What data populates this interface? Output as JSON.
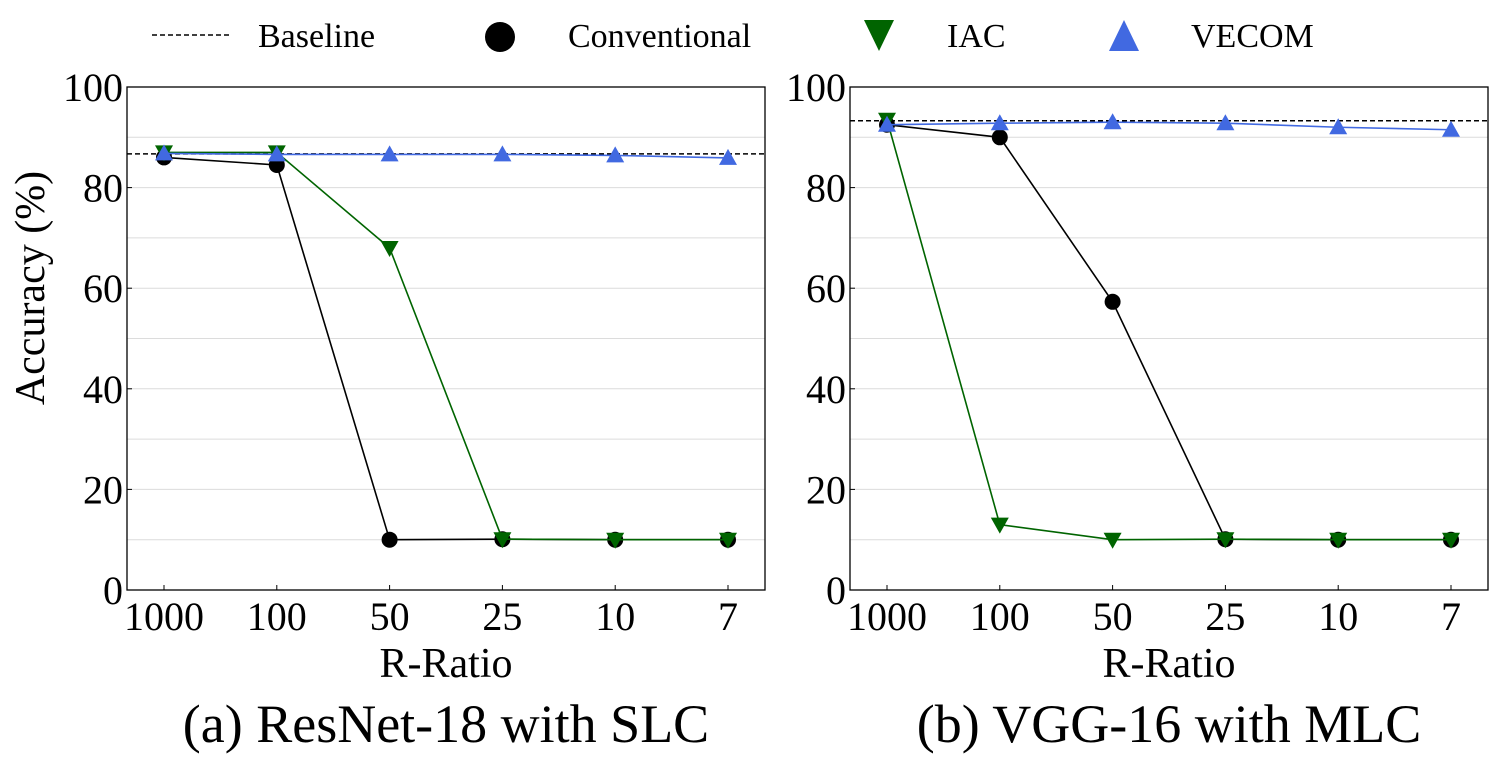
{
  "legend": {
    "items": [
      {
        "label": "Baseline",
        "marker": "dashed-line",
        "color": "#000000"
      },
      {
        "label": "Conventional",
        "marker": "circle",
        "color": "#000000"
      },
      {
        "label": "IAC",
        "marker": "triangle-down",
        "color": "#006400"
      },
      {
        "label": "VECOM",
        "marker": "triangle-up",
        "color": "#4169e1"
      }
    ]
  },
  "y_axis_title": "Accuracy (%)",
  "chart_data": [
    {
      "type": "line",
      "title": "(a) ResNet-18 with SLC",
      "xlabel": "R-Ratio",
      "ylabel": "Accuracy (%)",
      "categories": [
        "1000",
        "100",
        "50",
        "25",
        "10",
        "7"
      ],
      "yticks": [
        "0",
        "20",
        "40",
        "60",
        "80",
        "100"
      ],
      "ylim": [
        0,
        100
      ],
      "grid": "horizontal",
      "baseline": 86.7,
      "series": [
        {
          "name": "Conventional",
          "values": [
            86.0,
            84.5,
            10.0,
            10.1,
            10.0,
            10.0
          ]
        },
        {
          "name": "IAC",
          "values": [
            87.0,
            87.0,
            68.0,
            10.1,
            10.0,
            10.0
          ]
        },
        {
          "name": "VECOM",
          "values": [
            86.8,
            86.6,
            86.6,
            86.6,
            86.4,
            85.9
          ]
        }
      ]
    },
    {
      "type": "line",
      "title": "(b) VGG-16 with MLC",
      "xlabel": "R-Ratio",
      "ylabel": "",
      "categories": [
        "1000",
        "100",
        "50",
        "25",
        "10",
        "7"
      ],
      "yticks": [
        "0",
        "20",
        "40",
        "60",
        "80",
        "100"
      ],
      "ylim": [
        0,
        100
      ],
      "grid": "horizontal",
      "baseline": 93.3,
      "series": [
        {
          "name": "Conventional",
          "values": [
            92.5,
            90.0,
            57.3,
            10.1,
            10.0,
            10.0
          ]
        },
        {
          "name": "IAC",
          "values": [
            93.5,
            13.0,
            10.0,
            10.1,
            10.0,
            10.0
          ]
        },
        {
          "name": "VECOM",
          "values": [
            92.5,
            92.8,
            93.0,
            92.8,
            92.0,
            91.5
          ]
        }
      ]
    }
  ]
}
